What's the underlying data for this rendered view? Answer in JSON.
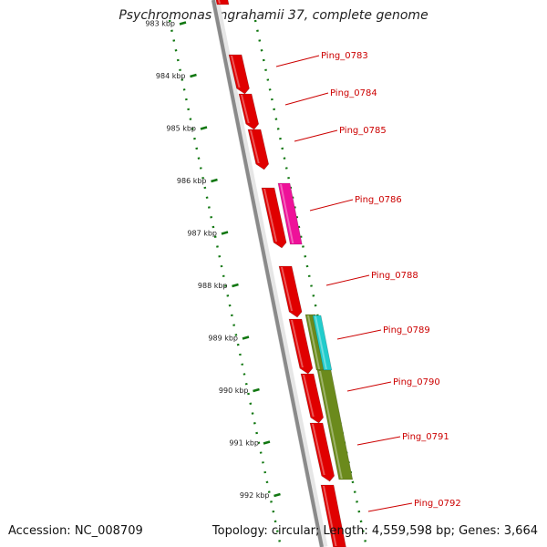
{
  "title": "Psychromonas ingrahamii 37, complete genome",
  "footer": {
    "accession": "Accession: NC_008709",
    "summary": "Topology: circular; Length: 4,559,598 bp; Genes: 3,664"
  },
  "colors": {
    "gene": "#e00000",
    "gene_alt_magenta": "#ee1199",
    "gene_alt_cyan": "#22cccc",
    "gene_alt_olive": "#6b8a1c",
    "label": "#cc0000",
    "ruler": "#117711",
    "backbone": "#8a8a8a"
  },
  "ruler": {
    "unit": "kbp",
    "ticks": [
      {
        "kbp": 983,
        "label": "983 kbp"
      },
      {
        "kbp": 984,
        "label": "984 kbp"
      },
      {
        "kbp": 985,
        "label": "985 kbp"
      },
      {
        "kbp": 986,
        "label": "986 kbp"
      },
      {
        "kbp": 987,
        "label": "987 kbp"
      },
      {
        "kbp": 988,
        "label": "988 kbp"
      },
      {
        "kbp": 989,
        "label": "989 kbp"
      },
      {
        "kbp": 990,
        "label": "990 kbp"
      },
      {
        "kbp": 991,
        "label": "991 kbp"
      },
      {
        "kbp": 992,
        "label": "992 kbp"
      }
    ]
  },
  "genes": [
    {
      "label": "Ping_0783"
    },
    {
      "label": "Ping_0784"
    },
    {
      "label": "Ping_0785"
    },
    {
      "label": "Ping_0786"
    },
    {
      "label": "Ping_0788"
    },
    {
      "label": "Ping_0789"
    },
    {
      "label": "Ping_0790"
    },
    {
      "label": "Ping_0791"
    },
    {
      "label": "Ping_0792"
    }
  ]
}
